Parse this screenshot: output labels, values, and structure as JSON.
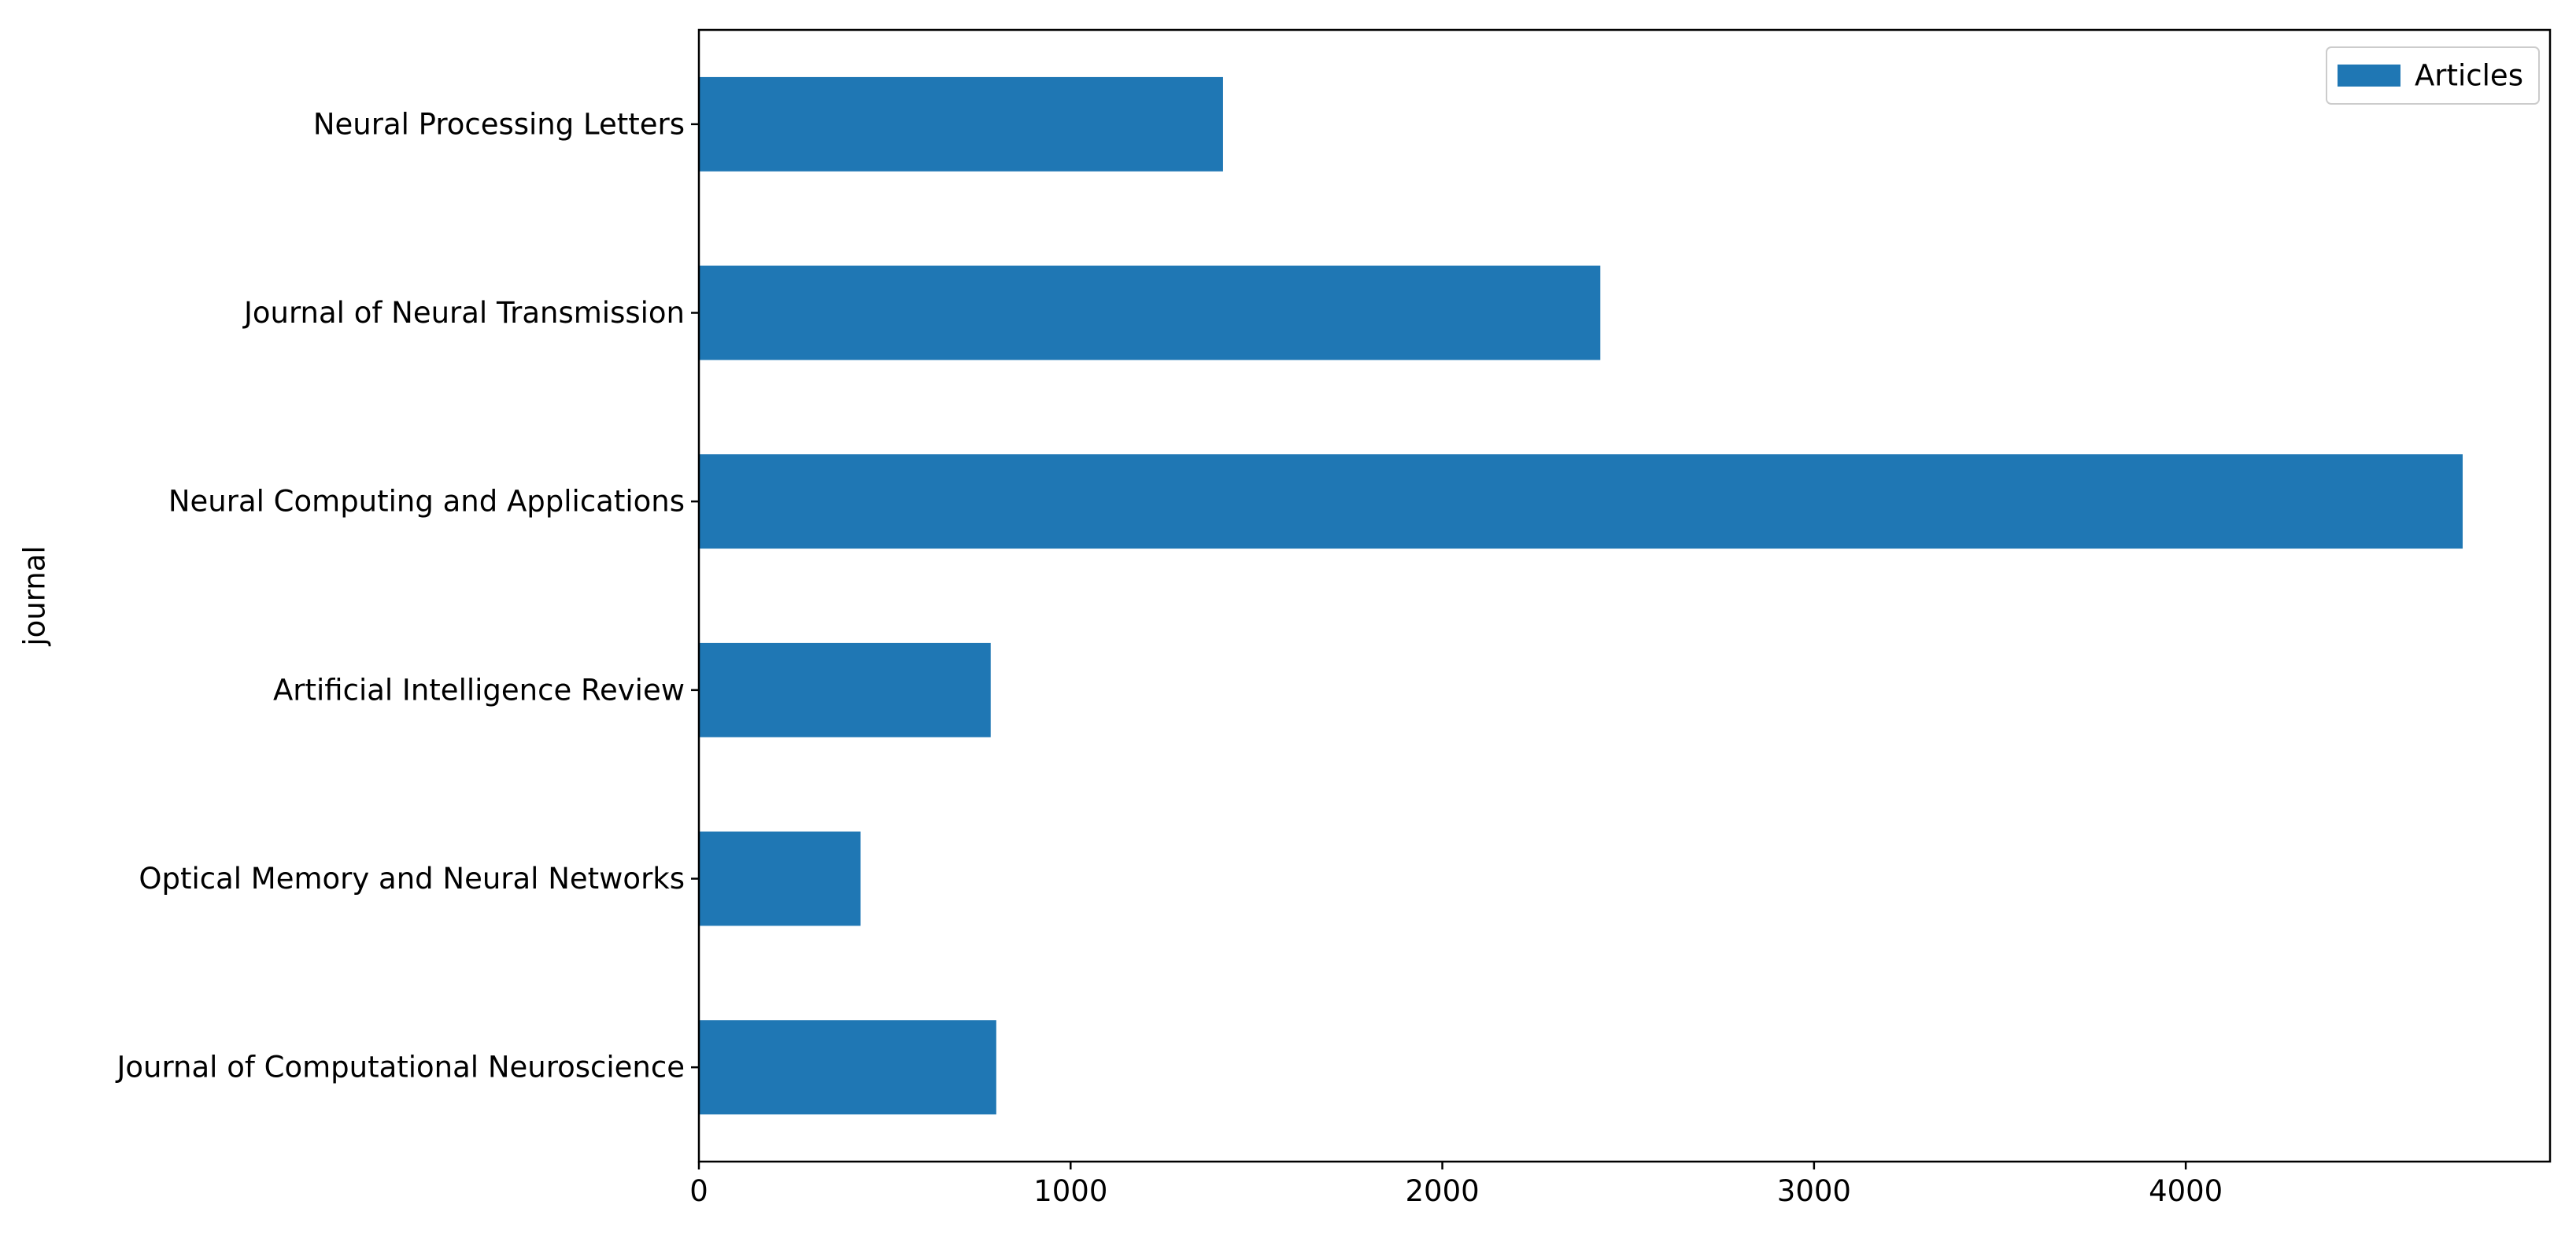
{
  "chart_data": {
    "type": "bar",
    "orientation": "horizontal",
    "title": "",
    "xlabel": "",
    "ylabel": "journal",
    "categories": [
      "Journal of Computational Neuroscience",
      "Optical Memory and Neural Networks",
      "Artificial Intelligence Review",
      "Neural Computing and Applications",
      "Journal of Neural Transmission",
      "Neural Processing Letters"
    ],
    "series": [
      {
        "name": "Articles",
        "color": "#1f77b4",
        "values": [
          800,
          435,
          785,
          4745,
          2425,
          1410
        ]
      }
    ],
    "xlim": [
      0,
      4980
    ],
    "xticks": [
      0,
      1000,
      2000,
      3000,
      4000
    ],
    "grid": false,
    "legend": "top-right"
  }
}
